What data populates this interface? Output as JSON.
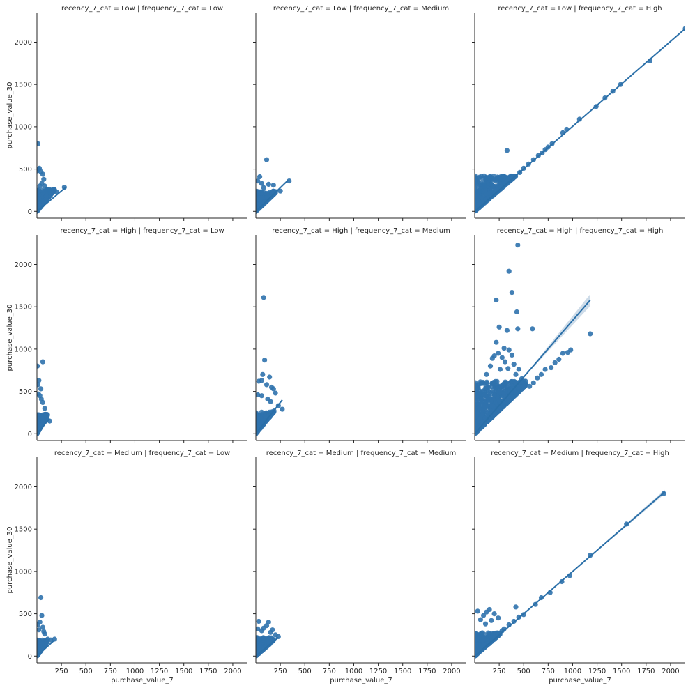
{
  "chart_data": {
    "type": "scatter",
    "layout": {
      "rows": 3,
      "cols": 3,
      "sharex": true,
      "sharey": true
    },
    "xlabel": "purchase_value_7",
    "ylabel": "purchase_value_30",
    "xlim": [
      0,
      2150
    ],
    "ylim": [
      -80,
      2350
    ],
    "xticks": [
      250,
      500,
      750,
      1000,
      1250,
      1500,
      1750,
      2000
    ],
    "yticks": [
      0,
      500,
      1000,
      1500,
      2000
    ],
    "colors": {
      "point": "#2f72ad",
      "line": "#2a6fa8",
      "band": "#b9cde0",
      "axis": "#262626",
      "text": "#262626"
    },
    "panels": [
      {
        "title": "recency_7_cat = Low | frequency_7_cat = Low",
        "fit": {
          "x0": 0,
          "y0": 0,
          "x1": 300,
          "y1": 290,
          "band": 0
        },
        "cluster": {
          "xmax": 180,
          "ymax": 260,
          "n": 220,
          "slope": 1.4
        },
        "points": [
          [
            10,
            800
          ],
          [
            25,
            510
          ],
          [
            15,
            500
          ],
          [
            5,
            480
          ],
          [
            40,
            470
          ],
          [
            60,
            440
          ],
          [
            70,
            380
          ],
          [
            50,
            330
          ],
          [
            100,
            260
          ],
          [
            130,
            220
          ],
          [
            280,
            285
          ],
          [
            200,
            230
          ],
          [
            30,
            300
          ],
          [
            80,
            300
          ]
        ]
      },
      {
        "title": "recency_7_cat = Low | frequency_7_cat = Medium",
        "fit": {
          "x0": 0,
          "y0": 0,
          "x1": 330,
          "y1": 370,
          "band": 0
        },
        "cluster": {
          "xmax": 200,
          "ymax": 240,
          "n": 200,
          "slope": 1.1
        },
        "points": [
          [
            110,
            610
          ],
          [
            40,
            410
          ],
          [
            20,
            360
          ],
          [
            60,
            330
          ],
          [
            130,
            320
          ],
          [
            180,
            310
          ],
          [
            340,
            360
          ],
          [
            80,
            280
          ],
          [
            250,
            240
          ]
        ]
      },
      {
        "title": "recency_7_cat = Low | frequency_7_cat = High",
        "fit": {
          "x0": 0,
          "y0": 0,
          "x1": 2150,
          "y1": 2160,
          "band": 0
        },
        "cluster": {
          "xmax": 420,
          "ymax": 420,
          "n": 420,
          "slope": 1.0
        },
        "points": [
          [
            2150,
            2160
          ],
          [
            1790,
            1780
          ],
          [
            1330,
            1340
          ],
          [
            1240,
            1240
          ],
          [
            1070,
            1090
          ],
          [
            940,
            970
          ],
          [
            900,
            930
          ],
          [
            790,
            800
          ],
          [
            750,
            760
          ],
          [
            720,
            730
          ],
          [
            690,
            690
          ],
          [
            650,
            660
          ],
          [
            600,
            610
          ],
          [
            550,
            560
          ],
          [
            500,
            510
          ],
          [
            330,
            720
          ],
          [
            150,
            390
          ],
          [
            90,
            330
          ],
          [
            210,
            370
          ],
          [
            260,
            380
          ],
          [
            40,
            230
          ],
          [
            100,
            300
          ],
          [
            120,
            400
          ],
          [
            170,
            320
          ],
          [
            300,
            340
          ],
          [
            400,
            410
          ],
          [
            460,
            460
          ],
          [
            1410,
            1420
          ],
          [
            1490,
            1500
          ]
        ]
      },
      {
        "title": "recency_7_cat = High | frequency_7_cat = Low",
        "fit": {
          "x0": 0,
          "y0": 0,
          "x1": 130,
          "y1": 180,
          "band": 0
        },
        "cluster": {
          "xmax": 110,
          "ymax": 230,
          "n": 200,
          "slope": 2.0
        },
        "points": [
          [
            60,
            850
          ],
          [
            5,
            800
          ],
          [
            20,
            630
          ],
          [
            10,
            580
          ],
          [
            40,
            530
          ],
          [
            30,
            450
          ],
          [
            60,
            370
          ],
          [
            80,
            300
          ],
          [
            130,
            150
          ],
          [
            100,
            180
          ],
          [
            15,
            470
          ],
          [
            45,
            410
          ]
        ]
      },
      {
        "title": "recency_7_cat = High | frequency_7_cat = Medium",
        "fit": {
          "x0": 0,
          "y0": 0,
          "x1": 270,
          "y1": 400,
          "band": 0
        },
        "cluster": {
          "xmax": 190,
          "ymax": 260,
          "n": 220,
          "slope": 1.4
        },
        "points": [
          [
            80,
            1610
          ],
          [
            90,
            870
          ],
          [
            70,
            700
          ],
          [
            140,
            670
          ],
          [
            60,
            630
          ],
          [
            30,
            620
          ],
          [
            110,
            580
          ],
          [
            160,
            550
          ],
          [
            180,
            530
          ],
          [
            200,
            480
          ],
          [
            60,
            450
          ],
          [
            20,
            460
          ],
          [
            120,
            410
          ],
          [
            150,
            380
          ],
          [
            270,
            290
          ],
          [
            230,
            330
          ]
        ]
      },
      {
        "title": "recency_7_cat = High | frequency_7_cat = High",
        "fit": {
          "x0": 0,
          "y0": 0,
          "x1": 1180,
          "y1": 1580,
          "band": 70
        },
        "cluster": {
          "xmax": 520,
          "ymax": 620,
          "n": 700,
          "slope": 1.1
        },
        "points": [
          [
            440,
            2230
          ],
          [
            350,
            1920
          ],
          [
            380,
            1670
          ],
          [
            430,
            1440
          ],
          [
            220,
            1580
          ],
          [
            440,
            1240
          ],
          [
            590,
            1240
          ],
          [
            250,
            1260
          ],
          [
            330,
            1220
          ],
          [
            1180,
            1180
          ],
          [
            220,
            1080
          ],
          [
            300,
            1010
          ],
          [
            350,
            990
          ],
          [
            980,
            990
          ],
          [
            950,
            960
          ],
          [
            900,
            950
          ],
          [
            860,
            880
          ],
          [
            820,
            840
          ],
          [
            780,
            780
          ],
          [
            720,
            760
          ],
          [
            680,
            700
          ],
          [
            640,
            660
          ],
          [
            600,
            600
          ],
          [
            560,
            560
          ],
          [
            240,
            950
          ],
          [
            200,
            920
          ],
          [
            180,
            890
          ],
          [
            380,
            930
          ],
          [
            400,
            820
          ],
          [
            450,
            760
          ],
          [
            480,
            650
          ],
          [
            520,
            620
          ],
          [
            280,
            900
          ],
          [
            160,
            800
          ],
          [
            310,
            850
          ],
          [
            120,
            700
          ],
          [
            260,
            760
          ],
          [
            340,
            770
          ],
          [
            420,
            700
          ]
        ]
      },
      {
        "title": "recency_7_cat = Medium | frequency_7_cat = Low",
        "fit": {
          "x0": 0,
          "y0": 0,
          "x1": 180,
          "y1": 190,
          "band": 0
        },
        "cluster": {
          "xmax": 100,
          "ymax": 190,
          "n": 180,
          "slope": 1.6
        },
        "points": [
          [
            40,
            690
          ],
          [
            50,
            480
          ],
          [
            30,
            400
          ],
          [
            60,
            340
          ],
          [
            10,
            370
          ],
          [
            20,
            310
          ],
          [
            80,
            260
          ],
          [
            110,
            200
          ],
          [
            180,
            200
          ],
          [
            70,
            290
          ],
          [
            140,
            190
          ]
        ]
      },
      {
        "title": "recency_7_cat = Medium | frequency_7_cat = Medium",
        "fit": {
          "x0": 0,
          "y0": 0,
          "x1": 230,
          "y1": 220,
          "band": 0
        },
        "cluster": {
          "xmax": 180,
          "ymax": 220,
          "n": 200,
          "slope": 1.0
        },
        "points": [
          [
            30,
            410
          ],
          [
            130,
            400
          ],
          [
            110,
            360
          ],
          [
            80,
            330
          ],
          [
            60,
            300
          ],
          [
            150,
            280
          ],
          [
            230,
            230
          ],
          [
            200,
            250
          ],
          [
            20,
            320
          ],
          [
            170,
            310
          ]
        ]
      },
      {
        "title": "recency_7_cat = Medium | frequency_7_cat = High",
        "fit": {
          "x0": 0,
          "y0": 0,
          "x1": 1940,
          "y1": 1940,
          "band": 25
        },
        "cluster": {
          "xmax": 260,
          "ymax": 280,
          "n": 320,
          "slope": 1.0
        },
        "points": [
          [
            1930,
            1920
          ],
          [
            1550,
            1560
          ],
          [
            1180,
            1190
          ],
          [
            970,
            950
          ],
          [
            890,
            880
          ],
          [
            770,
            750
          ],
          [
            680,
            690
          ],
          [
            620,
            610
          ],
          [
            500,
            490
          ],
          [
            450,
            460
          ],
          [
            400,
            410
          ],
          [
            420,
            580
          ],
          [
            150,
            550
          ],
          [
            120,
            520
          ],
          [
            30,
            530
          ],
          [
            200,
            500
          ],
          [
            240,
            450
          ],
          [
            90,
            480
          ],
          [
            60,
            430
          ],
          [
            170,
            420
          ],
          [
            300,
            320
          ],
          [
            350,
            370
          ],
          [
            110,
            380
          ],
          [
            280,
            300
          ]
        ]
      }
    ]
  }
}
